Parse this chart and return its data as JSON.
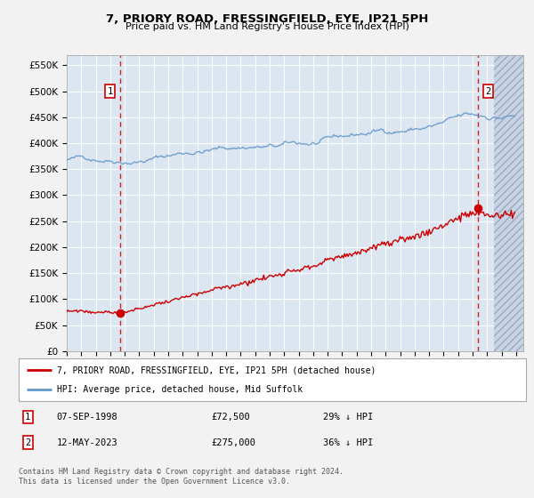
{
  "title": "7, PRIORY ROAD, FRESSINGFIELD, EYE, IP21 5PH",
  "subtitle": "Price paid vs. HM Land Registry's House Price Index (HPI)",
  "ylim": [
    0,
    570000
  ],
  "xlim_start": 1995.0,
  "xlim_end": 2026.5,
  "background_color": "#dce6f1",
  "plot_bg_color": "#dce6f1",
  "outer_bg_color": "#f2f2f2",
  "grid_color": "#ffffff",
  "transaction1_date": "07-SEP-1998",
  "transaction1_price": 72500,
  "transaction1_x": 1998.69,
  "transaction1_label": "29% ↓ HPI",
  "transaction2_date": "12-MAY-2023",
  "transaction2_price": 275000,
  "transaction2_x": 2023.37,
  "transaction2_label": "36% ↓ HPI",
  "legend_line1": "7, PRIORY ROAD, FRESSINGFIELD, EYE, IP21 5PH (detached house)",
  "legend_line2": "HPI: Average price, detached house, Mid Suffolk",
  "footer": "Contains HM Land Registry data © Crown copyright and database right 2024.\nThis data is licensed under the Open Government Licence v3.0.",
  "red_line_color": "#cc0000",
  "blue_line_color": "#6699cc",
  "hatch_start": 2024.5
}
